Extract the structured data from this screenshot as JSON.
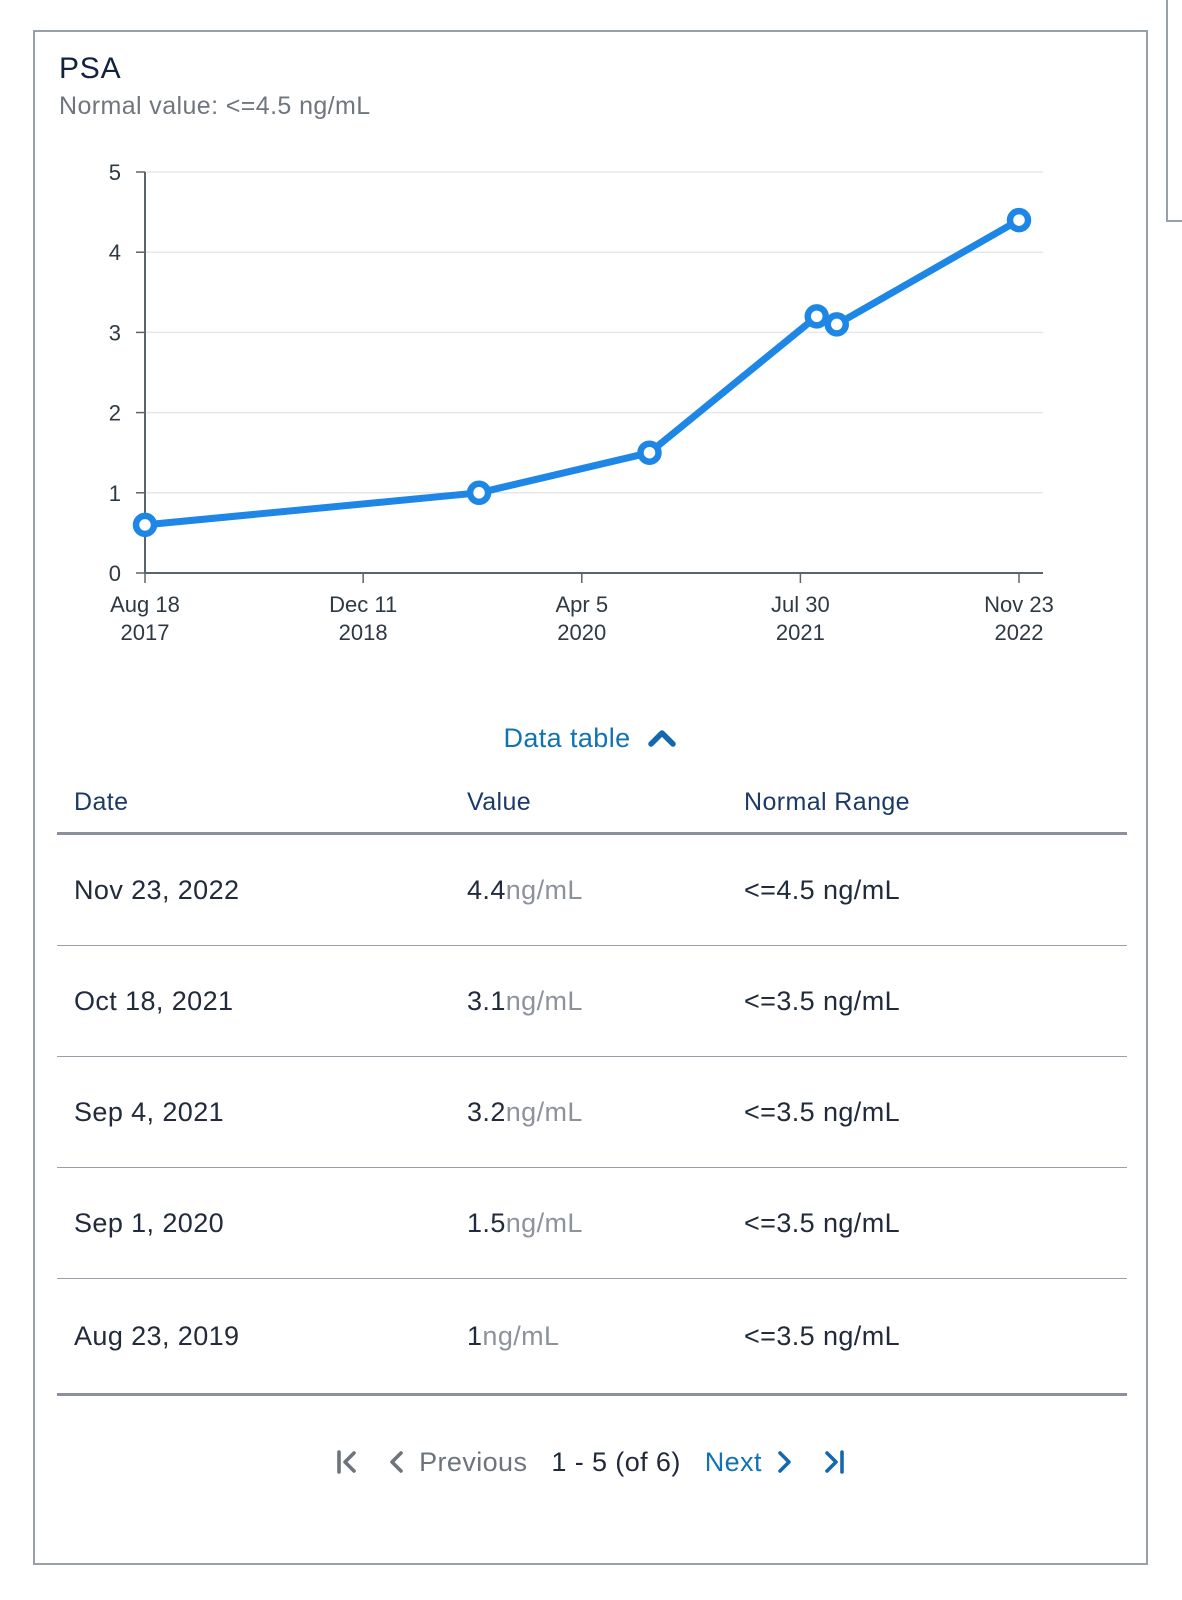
{
  "panel": {
    "title": "PSA",
    "subtitle": "Normal value: <=4.5 ng/mL"
  },
  "chart_data": {
    "type": "line",
    "title": "PSA",
    "xlabel": "",
    "ylabel": "ng/mL",
    "ylim": [
      0,
      5
    ],
    "y_ticks": [
      0,
      1,
      2,
      3,
      4,
      5
    ],
    "grid": true,
    "legend": "none",
    "x_ticks": [
      {
        "line1": "Aug 18",
        "line2": "2017",
        "date": "Aug 18, 2017"
      },
      {
        "line1": "Dec 11",
        "line2": "2018",
        "date": "Dec 11, 2018"
      },
      {
        "line1": "Apr 5",
        "line2": "2020",
        "date": "Apr 5, 2020"
      },
      {
        "line1": "Jul 30",
        "line2": "2021",
        "date": "Jul 30, 2021"
      },
      {
        "line1": "Nov 23",
        "line2": "2022",
        "date": "Nov 23, 2022"
      }
    ],
    "points": [
      {
        "date": "Aug 18, 2017",
        "value": 0.6
      },
      {
        "date": "Aug 23, 2019",
        "value": 1
      },
      {
        "date": "Sep 1, 2020",
        "value": 1.5
      },
      {
        "date": "Sep 4, 2021",
        "value": 3.2
      },
      {
        "date": "Oct 18, 2021",
        "value": 3.1
      },
      {
        "date": "Nov 23, 2022",
        "value": 4.4
      }
    ],
    "line_color": "#1e87e5",
    "marker": "open-circle"
  },
  "data_table": {
    "toggle_label": "Data table",
    "toggle_icon": "chevron-up-icon",
    "columns": [
      "Date",
      "Value",
      "Normal Range"
    ],
    "rows": [
      {
        "date": "Nov 23, 2022",
        "value": "4.4",
        "unit": "ng/mL",
        "normal_range": "<=4.5 ng/mL"
      },
      {
        "date": "Oct 18, 2021",
        "value": "3.1",
        "unit": "ng/mL",
        "normal_range": "<=3.5 ng/mL"
      },
      {
        "date": "Sep 4, 2021",
        "value": "3.2",
        "unit": "ng/mL",
        "normal_range": "<=3.5 ng/mL"
      },
      {
        "date": "Sep 1, 2020",
        "value": "1.5",
        "unit": "ng/mL",
        "normal_range": "<=3.5 ng/mL"
      },
      {
        "date": "Aug 23, 2019",
        "value": "1",
        "unit": "ng/mL",
        "normal_range": "<=3.5 ng/mL"
      }
    ]
  },
  "pagination": {
    "first_icon": "first-page-icon",
    "previous_icon": "chevron-left-icon",
    "previous_label": "Previous",
    "range_label": "1 - 5 (of 6)",
    "next_label": "Next",
    "next_icon": "chevron-right-icon",
    "last_icon": "last-page-icon"
  },
  "colors": {
    "line_blue": "#1e87e5",
    "link_blue": "#1173b2",
    "icon_blue": "#1567ae",
    "title_navy": "#13233f",
    "header_navy": "#1b3a64",
    "cell_dark": "#212b3b",
    "unit_gray": "#8d939c",
    "subtitle_gray": "#70767e",
    "disabled_gray": "#6e747c",
    "axis": "#5a646e",
    "grid": "#e7e7e7",
    "card_border": "#9aa0a8",
    "divider_thick": "#8a919c",
    "row_divider": "#9aa0a8"
  }
}
